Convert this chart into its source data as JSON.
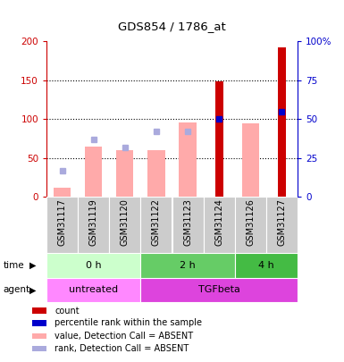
{
  "title": "GDS854 / 1786_at",
  "samples": [
    "GSM31117",
    "GSM31119",
    "GSM31120",
    "GSM31122",
    "GSM31123",
    "GSM31124",
    "GSM31126",
    "GSM31127"
  ],
  "count_values": [
    null,
    null,
    null,
    null,
    null,
    148,
    null,
    192
  ],
  "rank_values": [
    null,
    null,
    null,
    null,
    null,
    50,
    null,
    55
  ],
  "absent_value_bars": [
    12,
    65,
    60,
    60,
    96,
    null,
    94,
    null
  ],
  "absent_rank_bars": [
    17,
    37,
    32,
    42,
    42,
    null,
    null,
    null
  ],
  "count_color": "#cc0000",
  "rank_color": "#0000cc",
  "absent_value_color": "#ffaaaa",
  "absent_rank_color": "#aaaadd",
  "ylim_left": [
    0,
    200
  ],
  "ylim_right": [
    0,
    100
  ],
  "yticks_left": [
    0,
    50,
    100,
    150,
    200
  ],
  "ytick_labels_left": [
    "0",
    "50",
    "100",
    "150",
    "200"
  ],
  "yticks_right": [
    0,
    25,
    50,
    75,
    100
  ],
  "ytick_labels_right": [
    "0",
    "25",
    "50",
    "75",
    "100%"
  ],
  "time_groups": [
    {
      "label": "0 h",
      "start": 0,
      "end": 3,
      "color": "#ccffcc"
    },
    {
      "label": "2 h",
      "start": 3,
      "end": 6,
      "color": "#66cc66"
    },
    {
      "label": "4 h",
      "start": 6,
      "end": 8,
      "color": "#44bb44"
    }
  ],
  "agent_groups": [
    {
      "label": "untreated",
      "start": 0,
      "end": 3,
      "color": "#ff88ff"
    },
    {
      "label": "TGFbeta",
      "start": 3,
      "end": 8,
      "color": "#dd44dd"
    }
  ],
  "legend_items": [
    {
      "label": "count",
      "color": "#cc0000"
    },
    {
      "label": "percentile rank within the sample",
      "color": "#0000cc"
    },
    {
      "label": "value, Detection Call = ABSENT",
      "color": "#ffaaaa"
    },
    {
      "label": "rank, Detection Call = ABSENT",
      "color": "#aaaadd"
    }
  ],
  "bar_width": 0.55,
  "sample_bg_color": "#cccccc",
  "fig_width": 3.85,
  "fig_height": 4.05,
  "dpi": 100
}
